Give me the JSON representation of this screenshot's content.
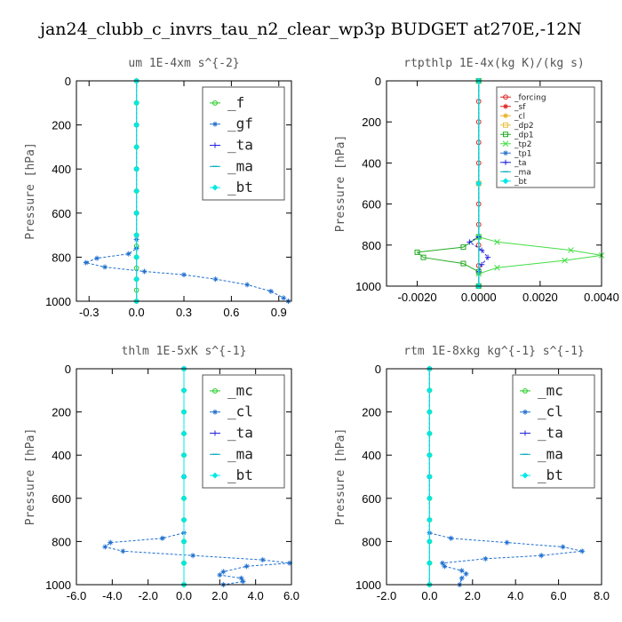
{
  "title": "jan24_clubb_c_invrs_tau_n2_clear_wp3p  BUDGET at270E,-12N",
  "chart_data": [
    {
      "type": "line",
      "title": "um  1E-4xm s^{-2}",
      "ylabel": "Pressure [hPa]",
      "xlim": [
        -0.38,
        0.98
      ],
      "ylim": [
        1000,
        0
      ],
      "xticks": [
        -0.3,
        0.0,
        0.3,
        0.6,
        0.9
      ],
      "xtick_labels": [
        "-0.3",
        "0.0",
        "0.3",
        "0.6",
        "0.9"
      ],
      "yticks": [
        0,
        200,
        400,
        600,
        800,
        1000
      ],
      "legend_size": "big",
      "series": [
        {
          "name": "_f",
          "color": "#22cc22",
          "marker": "circle",
          "points": [
            [
              0,
              0
            ],
            [
              0,
              100
            ],
            [
              0,
              200
            ],
            [
              0,
              300
            ],
            [
              0,
              400
            ],
            [
              0,
              500
            ],
            [
              0,
              600
            ],
            [
              0,
              700
            ],
            [
              0,
              750
            ],
            [
              0,
              800
            ],
            [
              0,
              850
            ],
            [
              0,
              900
            ],
            [
              0,
              950
            ],
            [
              0,
              1000
            ]
          ]
        },
        {
          "name": "_gf",
          "color": "#1e6fd0",
          "marker": "star",
          "points": [
            [
              0,
              0
            ],
            [
              0,
              200
            ],
            [
              0,
              400
            ],
            [
              0,
              600
            ],
            [
              0,
              720
            ],
            [
              0,
              760
            ],
            [
              -0.05,
              785
            ],
            [
              -0.25,
              805
            ],
            [
              -0.32,
              825
            ],
            [
              -0.2,
              845
            ],
            [
              0.05,
              865
            ],
            [
              0.3,
              880
            ],
            [
              0.5,
              900
            ],
            [
              0.7,
              925
            ],
            [
              0.85,
              955
            ],
            [
              0.93,
              985
            ],
            [
              0.96,
              1000
            ]
          ]
        },
        {
          "name": "_ta",
          "color": "#2222dd",
          "marker": "plus",
          "points": [
            [
              0,
              0
            ],
            [
              0,
              500
            ],
            [
              0,
              1000
            ]
          ]
        },
        {
          "name": "_ma",
          "color": "#00aabb",
          "marker": "dash",
          "points": [
            [
              0,
              0
            ],
            [
              0,
              500
            ],
            [
              0,
              1000
            ]
          ]
        },
        {
          "name": "_bt",
          "color": "#00e8e8",
          "marker": "diamond",
          "points": [
            [
              0,
              0
            ],
            [
              0,
              100
            ],
            [
              0,
              200
            ],
            [
              0,
              300
            ],
            [
              0,
              400
            ],
            [
              0,
              500
            ],
            [
              0,
              600
            ],
            [
              0,
              700
            ],
            [
              0,
              800
            ],
            [
              0,
              900
            ],
            [
              0,
              1000
            ]
          ]
        }
      ]
    },
    {
      "type": "line",
      "title": "rtpthlp  1E-4x(kg K)/(kg s)",
      "ylabel": "Pressure [hPa]",
      "xlim": [
        -0.003,
        0.004
      ],
      "ylim": [
        1000,
        0
      ],
      "xticks": [
        -0.002,
        0.0,
        0.002,
        0.004
      ],
      "xtick_labels": [
        "-0.0020",
        "0.0000",
        "0.0020",
        "0.0040"
      ],
      "yticks": [
        0,
        200,
        400,
        600,
        800,
        1000
      ],
      "legend_size": "small",
      "series": [
        {
          "name": "_forcing",
          "color": "#dd2222",
          "marker": "circle",
          "points": [
            [
              0,
              0
            ],
            [
              0,
              100
            ],
            [
              0,
              200
            ],
            [
              0,
              300
            ],
            [
              0,
              400
            ],
            [
              0,
              500
            ],
            [
              0,
              600
            ],
            [
              0,
              700
            ],
            [
              0,
              800
            ],
            [
              0,
              900
            ],
            [
              0,
              1000
            ]
          ]
        },
        {
          "name": "_sf",
          "color": "#dd2222",
          "marker": "star",
          "points": [
            [
              0,
              0
            ],
            [
              0,
              500
            ],
            [
              0,
              1000
            ]
          ]
        },
        {
          "name": "_cl",
          "color": "#e8b020",
          "marker": "star",
          "points": [
            [
              0,
              0
            ],
            [
              0,
              500
            ],
            [
              0,
              1000
            ]
          ]
        },
        {
          "name": "_dp2",
          "color": "#e8c040",
          "marker": "square",
          "points": [
            [
              0,
              0
            ],
            [
              0,
              500
            ],
            [
              0,
              1000
            ]
          ]
        },
        {
          "name": "_dp1",
          "color": "#22aa22",
          "marker": "square",
          "points": [
            [
              0,
              0
            ],
            [
              0,
              760
            ],
            [
              -0.0005,
              810
            ],
            [
              -0.002,
              835
            ],
            [
              -0.0018,
              860
            ],
            [
              -0.0005,
              890
            ],
            [
              0,
              930
            ],
            [
              0,
              1000
            ]
          ]
        },
        {
          "name": "_tp2",
          "color": "#44dd44",
          "marker": "cross",
          "points": [
            [
              0,
              0
            ],
            [
              0,
              760
            ],
            [
              0.0006,
              785
            ],
            [
              0.003,
              825
            ],
            [
              0.004,
              850
            ],
            [
              0.0028,
              875
            ],
            [
              0.0006,
              910
            ],
            [
              0,
              940
            ],
            [
              0,
              1000
            ]
          ]
        },
        {
          "name": "_tp1",
          "color": "#3377cc",
          "marker": "star",
          "points": [
            [
              0,
              0
            ],
            [
              0,
              500
            ],
            [
              0,
              1000
            ]
          ]
        },
        {
          "name": "_ta",
          "color": "#2222dd",
          "marker": "plus",
          "points": [
            [
              0,
              0
            ],
            [
              0,
              760
            ],
            [
              -0.0003,
              785
            ],
            [
              0.0001,
              825
            ],
            [
              0.0003,
              860
            ],
            [
              0.0001,
              895
            ],
            [
              0,
              930
            ],
            [
              0,
              1000
            ]
          ]
        },
        {
          "name": "_ma",
          "color": "#00aabb",
          "marker": "dash",
          "points": [
            [
              0,
              0
            ],
            [
              0,
              500
            ],
            [
              0,
              1000
            ]
          ]
        },
        {
          "name": "_bt",
          "color": "#00e8e8",
          "marker": "diamond",
          "points": [
            [
              0,
              0
            ],
            [
              0,
              500
            ],
            [
              0,
              1000
            ]
          ]
        }
      ]
    },
    {
      "type": "line",
      "title": "thlm  1E-5xK s^{-1}",
      "ylabel": "Pressure [hPa]",
      "xlim": [
        -6.0,
        6.0
      ],
      "ylim": [
        1000,
        0
      ],
      "xticks": [
        -6,
        -4,
        -2,
        0,
        2,
        4,
        6
      ],
      "xtick_labels": [
        "-6.0",
        "-4.0",
        "-2.0",
        "0.0",
        "2.0",
        "4.0",
        "6.0"
      ],
      "yticks": [
        0,
        200,
        400,
        600,
        800,
        1000
      ],
      "legend_size": "big",
      "series": [
        {
          "name": "_mc",
          "color": "#22cc22",
          "marker": "circle",
          "points": [
            [
              0,
              0
            ],
            [
              0,
              100
            ],
            [
              0,
              200
            ],
            [
              0,
              300
            ],
            [
              0,
              400
            ],
            [
              0,
              500
            ],
            [
              0,
              600
            ],
            [
              0,
              700
            ],
            [
              0,
              800
            ],
            [
              0,
              900
            ],
            [
              0,
              1000
            ]
          ]
        },
        {
          "name": "_cl",
          "color": "#1e6fd0",
          "marker": "star",
          "points": [
            [
              0,
              0
            ],
            [
              0,
              500
            ],
            [
              0,
              760
            ],
            [
              -1.2,
              785
            ],
            [
              -4.1,
              805
            ],
            [
              -4.4,
              825
            ],
            [
              -3.4,
              845
            ],
            [
              0.5,
              865
            ],
            [
              4.4,
              885
            ],
            [
              5.9,
              900
            ],
            [
              3.5,
              915
            ],
            [
              2.2,
              940
            ],
            [
              2.0,
              955
            ],
            [
              3.2,
              970
            ],
            [
              3.3,
              985
            ],
            [
              2.2,
              1000
            ]
          ]
        },
        {
          "name": "_ta",
          "color": "#2222dd",
          "marker": "plus",
          "points": [
            [
              0,
              0
            ],
            [
              0,
              500
            ],
            [
              0,
              1000
            ]
          ]
        },
        {
          "name": "_ma",
          "color": "#00aabb",
          "marker": "dash",
          "points": [
            [
              0,
              0
            ],
            [
              0,
              500
            ],
            [
              0,
              1000
            ]
          ]
        },
        {
          "name": "_bt",
          "color": "#00e8e8",
          "marker": "diamond",
          "points": [
            [
              0,
              0
            ],
            [
              0,
              100
            ],
            [
              0,
              200
            ],
            [
              0,
              300
            ],
            [
              0,
              400
            ],
            [
              0,
              500
            ],
            [
              0,
              600
            ],
            [
              0,
              700
            ],
            [
              0,
              800
            ],
            [
              0,
              900
            ],
            [
              0,
              1000
            ]
          ]
        }
      ]
    },
    {
      "type": "line",
      "title": "rtm  1E-8xkg kg^{-1} s^{-1}",
      "ylabel": "Pressure [hPa]",
      "xlim": [
        -2.0,
        8.0
      ],
      "ylim": [
        1000,
        0
      ],
      "xticks": [
        -2,
        0,
        2,
        4,
        6,
        8
      ],
      "xtick_labels": [
        "-2.0",
        "0.0",
        "2.0",
        "4.0",
        "6.0",
        "8.0"
      ],
      "yticks": [
        0,
        200,
        400,
        600,
        800,
        1000
      ],
      "legend_size": "big",
      "series": [
        {
          "name": "_mc",
          "color": "#22cc22",
          "marker": "circle",
          "points": [
            [
              0,
              0
            ],
            [
              0,
              100
            ],
            [
              0,
              200
            ],
            [
              0,
              300
            ],
            [
              0,
              400
            ],
            [
              0,
              500
            ],
            [
              0,
              600
            ],
            [
              0,
              700
            ],
            [
              0,
              800
            ],
            [
              0,
              900
            ],
            [
              0,
              1000
            ]
          ]
        },
        {
          "name": "_cl",
          "color": "#1e6fd0",
          "marker": "star",
          "points": [
            [
              0,
              0
            ],
            [
              0,
              500
            ],
            [
              0,
              760
            ],
            [
              1.0,
              785
            ],
            [
              3.6,
              805
            ],
            [
              6.2,
              825
            ],
            [
              7.1,
              845
            ],
            [
              5.2,
              865
            ],
            [
              2.6,
              880
            ],
            [
              0.6,
              900
            ],
            [
              0.7,
              915
            ],
            [
              1.5,
              935
            ],
            [
              1.7,
              950
            ],
            [
              1.5,
              970
            ],
            [
              1.4,
              1000
            ]
          ]
        },
        {
          "name": "_ta",
          "color": "#2222dd",
          "marker": "plus",
          "points": [
            [
              0,
              0
            ],
            [
              0,
              500
            ],
            [
              0,
              1000
            ]
          ]
        },
        {
          "name": "_ma",
          "color": "#00aabb",
          "marker": "dash",
          "points": [
            [
              0,
              0
            ],
            [
              0,
              500
            ],
            [
              0,
              1000
            ]
          ]
        },
        {
          "name": "_bt",
          "color": "#00e8e8",
          "marker": "diamond",
          "points": [
            [
              0,
              0
            ],
            [
              0,
              100
            ],
            [
              0,
              200
            ],
            [
              0,
              300
            ],
            [
              0,
              400
            ],
            [
              0,
              500
            ],
            [
              0,
              600
            ],
            [
              0,
              700
            ],
            [
              0,
              800
            ],
            [
              0,
              900
            ],
            [
              0,
              1000
            ]
          ]
        }
      ]
    }
  ]
}
